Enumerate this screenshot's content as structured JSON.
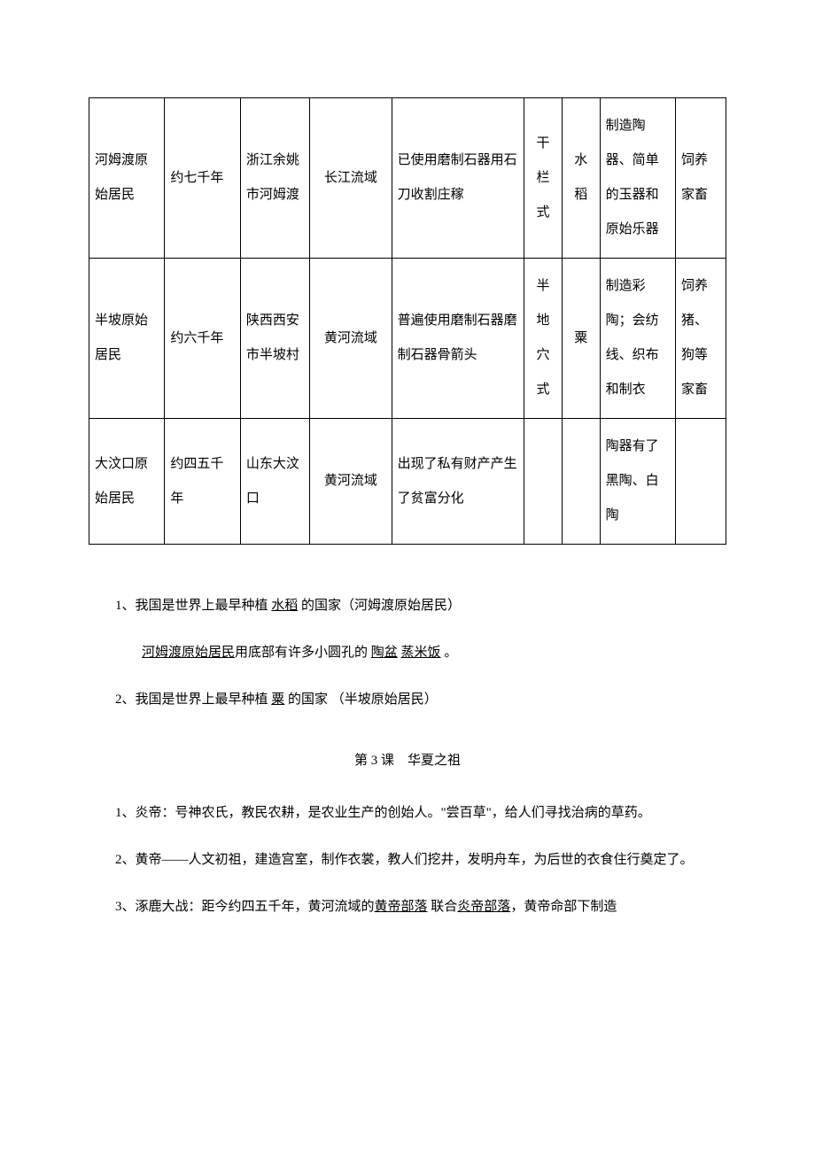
{
  "table": {
    "col_widths": [
      "12%",
      "12%",
      "11%",
      "13%",
      "21%",
      "6%",
      "6%",
      "12%",
      "8%"
    ],
    "rows": [
      {
        "c0": "河姆渡原始居民",
        "c1": "约七千年",
        "c2": "浙江余姚市河姆渡",
        "c3": "长江流域",
        "c4": "已使用磨制石器用石刀收割庄稼",
        "c5": "干栏式",
        "c6": "水稻",
        "c7": "制造陶器、简单的玉器和原始乐器",
        "c8": "饲养家畜"
      },
      {
        "c0": "半坡原始居民",
        "c1": "约六千年",
        "c2": "陕西西安市半坡村",
        "c3": "黄河流域",
        "c4": "普遍使用磨制石器磨制石器骨箭头",
        "c5": "半地穴式",
        "c6": "粟",
        "c7": "制造彩陶；会纺线、织布和制衣",
        "c8": "饲养猪、狗等家畜"
      },
      {
        "c0": "大汶口原始居民",
        "c1": "约四五千年",
        "c2": "山东大汶口",
        "c3": "黄河流域",
        "c4": "出现了私有财产产生了贫富分化",
        "c5": "",
        "c6": "",
        "c7": "陶器有了黑陶、白陶",
        "c8": ""
      }
    ]
  },
  "body": {
    "p1_a": "1、我国是世界上最早种植 ",
    "p1_u": "水稻",
    "p1_b": " 的国家（河姆渡原始居民）",
    "p2_u1": "河姆渡原始居民",
    "p2_a": "用底部有许多小圆孔的 ",
    "p2_u2": "陶盆",
    "p2_sp": " ",
    "p2_u3": "蒸米饭",
    "p2_b": " 。",
    "p3_a": "2、我国是世界上最早种植 ",
    "p3_u": "粟",
    "p3_b": " 的国家 （半坡原始居民）",
    "section_title": "第 3 课　华夏之祖",
    "p4": "1、炎帝：号神农氏，教民农耕，是农业生产的创始人。\"尝百草\"，给人们寻找治病的草药。",
    "p5": "2、黄帝——人文初祖，建造宫室，制作衣裳，教人们挖井，发明舟车，为后世的衣食住行奠定了。",
    "p6_a": "3、涿鹿大战：距今约四五千年，黄河流域的",
    "p6_u1": "黄帝部落",
    "p6_b": " 联合",
    "p6_u2": "炎帝部落",
    "p6_c": "，黄帝命部下制造"
  }
}
